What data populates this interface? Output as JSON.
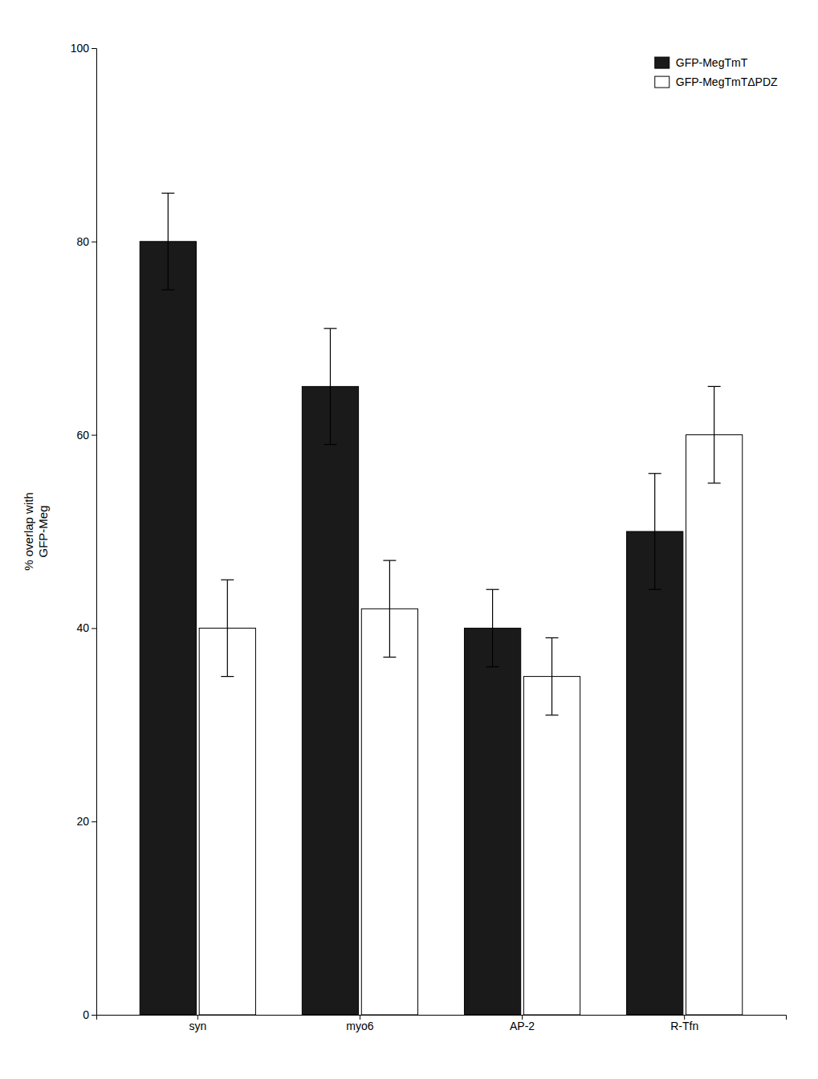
{
  "chart_data": {
    "type": "bar",
    "categories": [
      "syn",
      "myo6",
      "AP-2",
      "R-Tfn"
    ],
    "ylabel": "% overlap with\nGFP-Meg",
    "ylim": [
      0,
      100
    ],
    "yticks": [
      0,
      20,
      40,
      60,
      80,
      100
    ],
    "legend": "upper right",
    "series": [
      {
        "name": "GFP-MegTmT",
        "color": "#1a1a1a",
        "values": [
          80,
          65,
          40,
          50
        ],
        "errors": [
          5,
          6,
          4,
          6
        ]
      },
      {
        "name": "GFP-MegTmTΔPDZ",
        "color": "#ffffff",
        "values": [
          40,
          42,
          35,
          60
        ],
        "errors": [
          5,
          5,
          4,
          5
        ]
      }
    ]
  }
}
